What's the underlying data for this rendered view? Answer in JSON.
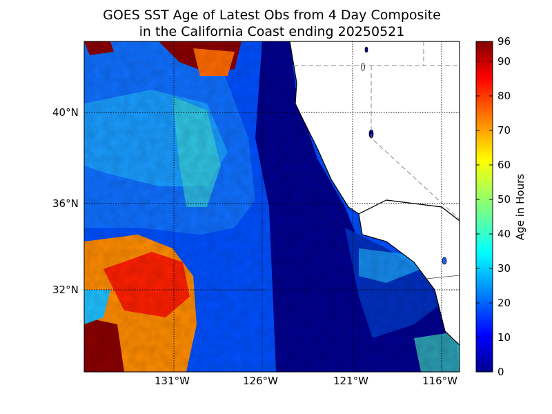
{
  "title": {
    "line1": "GOES SST Age of Latest Obs from 4 Day Composite",
    "line2": "in the California Coast ending 20250521"
  },
  "map": {
    "lon_ticks": [
      "131°W",
      "126°W",
      "121°W",
      "116°W"
    ],
    "lat_ticks": [
      "40°N",
      "36°N",
      "32°N"
    ],
    "ocean_low_color": "#00008f",
    "land_color": "#ffffff"
  },
  "colorbar": {
    "label": "Age in Hours",
    "ticks": [
      "0",
      "10",
      "20",
      "30",
      "40",
      "50",
      "60",
      "70",
      "80",
      "90",
      "96"
    ],
    "colormap": "jet",
    "range": [
      0,
      96
    ]
  }
}
